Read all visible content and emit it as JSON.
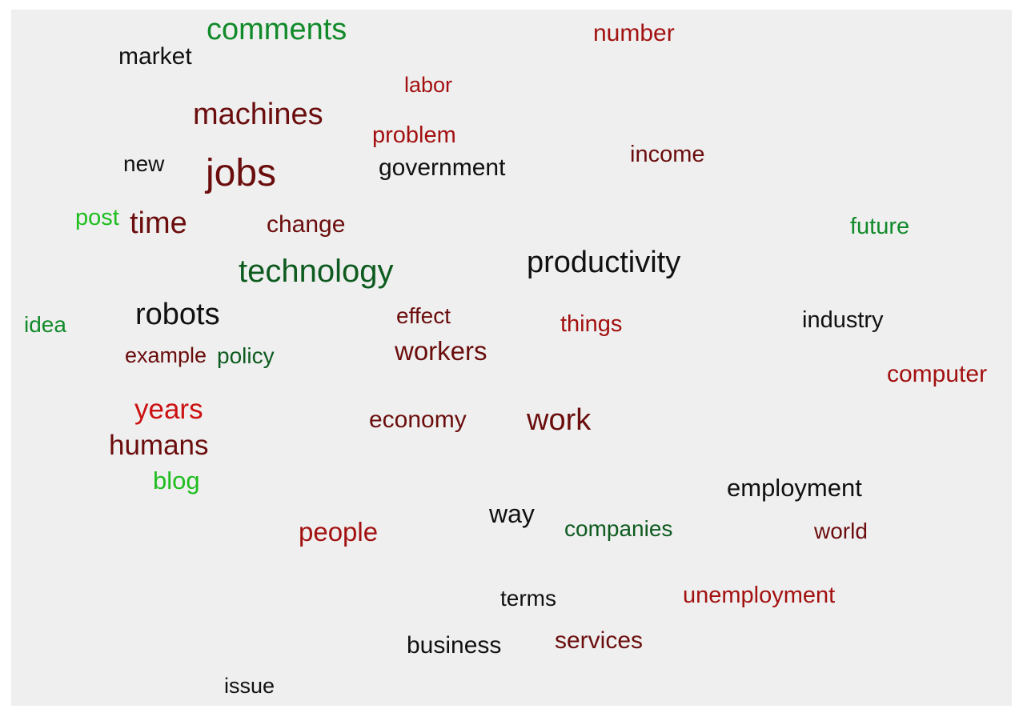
{
  "words": [
    {
      "text": "comments",
      "color": "green"
    },
    {
      "text": "number",
      "color": "red"
    },
    {
      "text": "market",
      "color": "black"
    },
    {
      "text": "labor",
      "color": "red"
    },
    {
      "text": "machines",
      "color": "darkred"
    },
    {
      "text": "problem",
      "color": "red"
    },
    {
      "text": "income",
      "color": "darkred"
    },
    {
      "text": "new",
      "color": "black"
    },
    {
      "text": "jobs",
      "color": "darkred"
    },
    {
      "text": "government",
      "color": "black"
    },
    {
      "text": "post",
      "color": "brightgreen"
    },
    {
      "text": "time",
      "color": "darkred"
    },
    {
      "text": "change",
      "color": "darkred"
    },
    {
      "text": "future",
      "color": "green"
    },
    {
      "text": "productivity",
      "color": "black"
    },
    {
      "text": "technology",
      "color": "darkgreen"
    },
    {
      "text": "idea",
      "color": "green"
    },
    {
      "text": "robots",
      "color": "black"
    },
    {
      "text": "effect",
      "color": "darkred"
    },
    {
      "text": "things",
      "color": "red"
    },
    {
      "text": "industry",
      "color": "black"
    },
    {
      "text": "example",
      "color": "darkred"
    },
    {
      "text": "policy",
      "color": "darkgreen"
    },
    {
      "text": "workers",
      "color": "darkred"
    },
    {
      "text": "computer",
      "color": "red"
    },
    {
      "text": "years",
      "color": "brightred"
    },
    {
      "text": "economy",
      "color": "darkred"
    },
    {
      "text": "work",
      "color": "darkred"
    },
    {
      "text": "humans",
      "color": "darkred"
    },
    {
      "text": "blog",
      "color": "brightgreen"
    },
    {
      "text": "employment",
      "color": "black"
    },
    {
      "text": "way",
      "color": "black"
    },
    {
      "text": "companies",
      "color": "darkgreen"
    },
    {
      "text": "people",
      "color": "red"
    },
    {
      "text": "world",
      "color": "darkred"
    },
    {
      "text": "unemployment",
      "color": "red"
    },
    {
      "text": "terms",
      "color": "black"
    },
    {
      "text": "services",
      "color": "darkred"
    },
    {
      "text": "business",
      "color": "black"
    },
    {
      "text": "issue",
      "color": "black"
    }
  ]
}
